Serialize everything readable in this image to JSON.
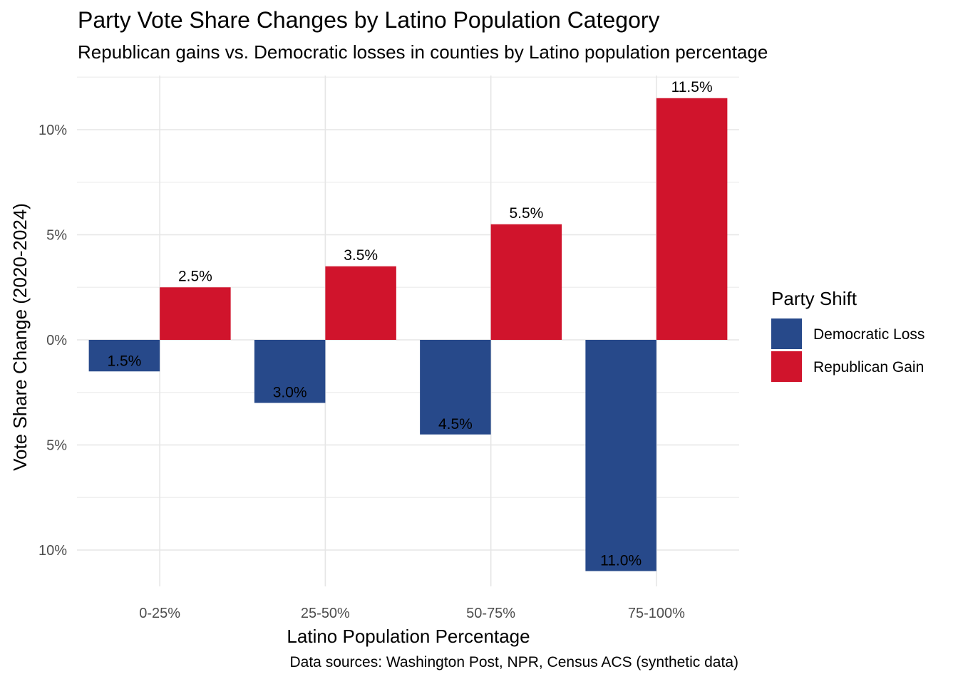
{
  "chart_data": {
    "type": "bar",
    "title": "Party Vote Share Changes by Latino Population Category",
    "subtitle": "Republican gains vs. Democratic losses in counties by Latino population percentage",
    "xlabel": "Latino Population Percentage",
    "ylabel": "Vote Share Change (2020-2024)",
    "caption": "Data sources: Washington Post, NPR, Census ACS (synthetic data)",
    "categories": [
      "0-25%",
      "25-50%",
      "50-75%",
      "75-100%"
    ],
    "ylim": [
      -11.0,
      11.5
    ],
    "y_ticks": [
      -10,
      -5,
      0,
      5,
      10
    ],
    "y_tick_labels": [
      "10%",
      "5%",
      "0%",
      "5%",
      "10%"
    ],
    "grid": true,
    "legend": {
      "title": "Party Shift",
      "position": "right"
    },
    "series": [
      {
        "name": "Democratic Loss",
        "color": "#27498A",
        "values": [
          -1.5,
          -3.0,
          -4.5,
          -11.0
        ],
        "labels": [
          "1.5%",
          "3.0%",
          "4.5%",
          "11.0%"
        ]
      },
      {
        "name": "Republican Gain",
        "color": "#D0142C",
        "values": [
          2.5,
          3.5,
          5.5,
          11.5
        ],
        "labels": [
          "2.5%",
          "3.5%",
          "5.5%",
          "11.5%"
        ]
      }
    ]
  }
}
